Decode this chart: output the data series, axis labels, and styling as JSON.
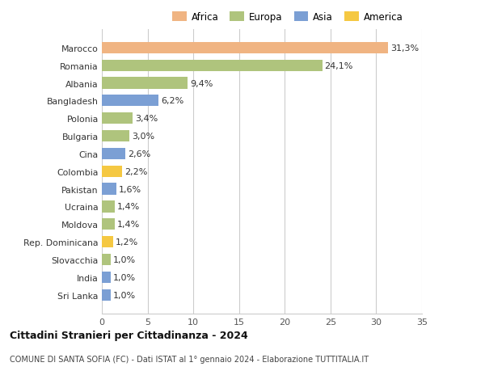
{
  "categories": [
    "Sri Lanka",
    "India",
    "Slovacchia",
    "Rep. Dominicana",
    "Moldova",
    "Ucraina",
    "Pakistan",
    "Colombia",
    "Cina",
    "Bulgaria",
    "Polonia",
    "Bangladesh",
    "Albania",
    "Romania",
    "Marocco"
  ],
  "values": [
    1.0,
    1.0,
    1.0,
    1.2,
    1.4,
    1.4,
    1.6,
    2.2,
    2.6,
    3.0,
    3.4,
    6.2,
    9.4,
    24.1,
    31.3
  ],
  "labels": [
    "1,0%",
    "1,0%",
    "1,0%",
    "1,2%",
    "1,4%",
    "1,4%",
    "1,6%",
    "2,2%",
    "2,6%",
    "3,0%",
    "3,4%",
    "6,2%",
    "9,4%",
    "24,1%",
    "31,3%"
  ],
  "colors": [
    "#7b9fd4",
    "#7b9fd4",
    "#afc47d",
    "#f5c842",
    "#afc47d",
    "#afc47d",
    "#7b9fd4",
    "#f5c842",
    "#7b9fd4",
    "#afc47d",
    "#afc47d",
    "#7b9fd4",
    "#afc47d",
    "#afc47d",
    "#f0b482"
  ],
  "continent": [
    "Asia",
    "Asia",
    "Europa",
    "America",
    "Europa",
    "Europa",
    "Asia",
    "America",
    "Asia",
    "Europa",
    "Europa",
    "Asia",
    "Europa",
    "Europa",
    "Africa"
  ],
  "legend_labels": [
    "Africa",
    "Europa",
    "Asia",
    "America"
  ],
  "legend_colors": [
    "#f0b482",
    "#afc47d",
    "#7b9fd4",
    "#f5c842"
  ],
  "xlim": [
    0,
    35
  ],
  "xticks": [
    0,
    5,
    10,
    15,
    20,
    25,
    30,
    35
  ],
  "title1": "Cittadini Stranieri per Cittadinanza - 2024",
  "title2": "COMUNE DI SANTA SOFIA (FC) - Dati ISTAT al 1° gennaio 2024 - Elaborazione TUTTITALIA.IT",
  "bg_color": "#ffffff",
  "bar_height": 0.65,
  "grid_color": "#cccccc",
  "label_fontsize": 7.8,
  "tick_fontsize": 8.0,
  "value_fontsize": 8.0
}
